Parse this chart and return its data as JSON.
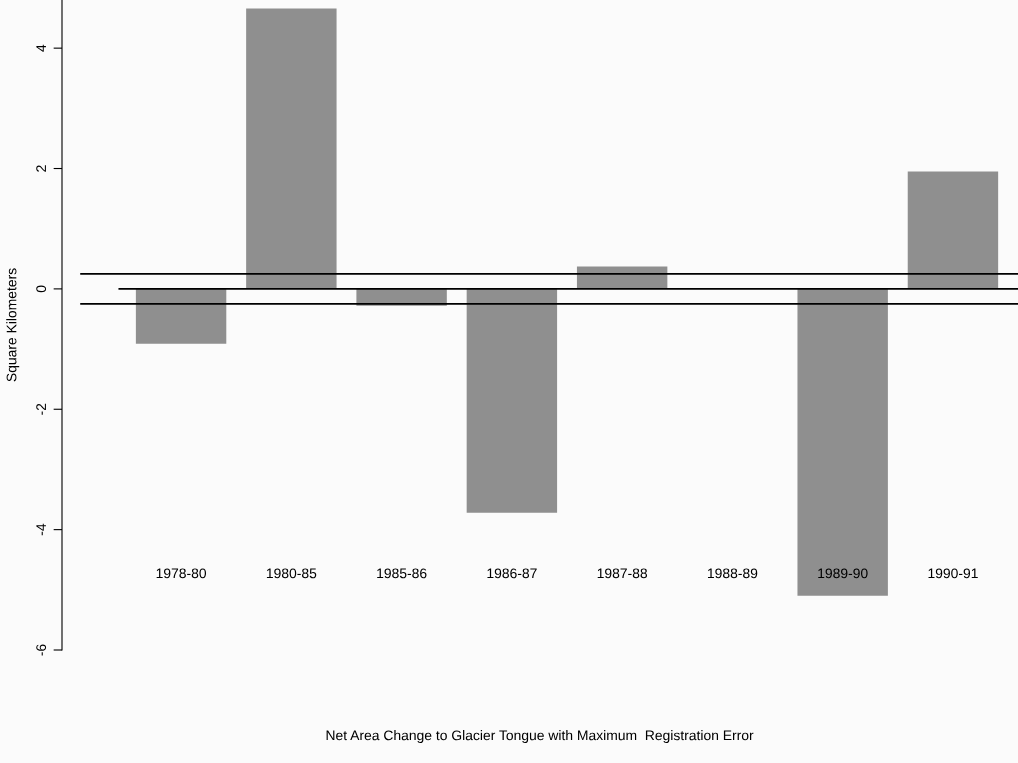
{
  "chart_data": {
    "type": "bar",
    "annotations": [
      "Net Area Change to Glacier Tongue with Maximum  Registration Error"
    ],
    "ylabel": "Square Kilometers",
    "categories": [
      "1978-80",
      "1980-85",
      "1985-86",
      "1986-87",
      "1987-88",
      "1988-89",
      "1989-90",
      "1990-91"
    ],
    "values": [
      -0.91,
      4.66,
      -0.28,
      -3.72,
      0.37,
      0,
      -5.1,
      1.95
    ],
    "color": "#8f8f8f",
    "ylim": [
      -6,
      4.8
    ],
    "yticks": [
      -6,
      -4,
      -2,
      0,
      2,
      4
    ],
    "ref_lines": [
      {
        "axis": "y",
        "value": 0.25,
        "color": "#000000"
      },
      {
        "axis": "y",
        "value": 0,
        "color": "#000000"
      },
      {
        "axis": "y",
        "value": -0.25,
        "color": "#000000"
      }
    ],
    "grid": false,
    "legend": false
  }
}
